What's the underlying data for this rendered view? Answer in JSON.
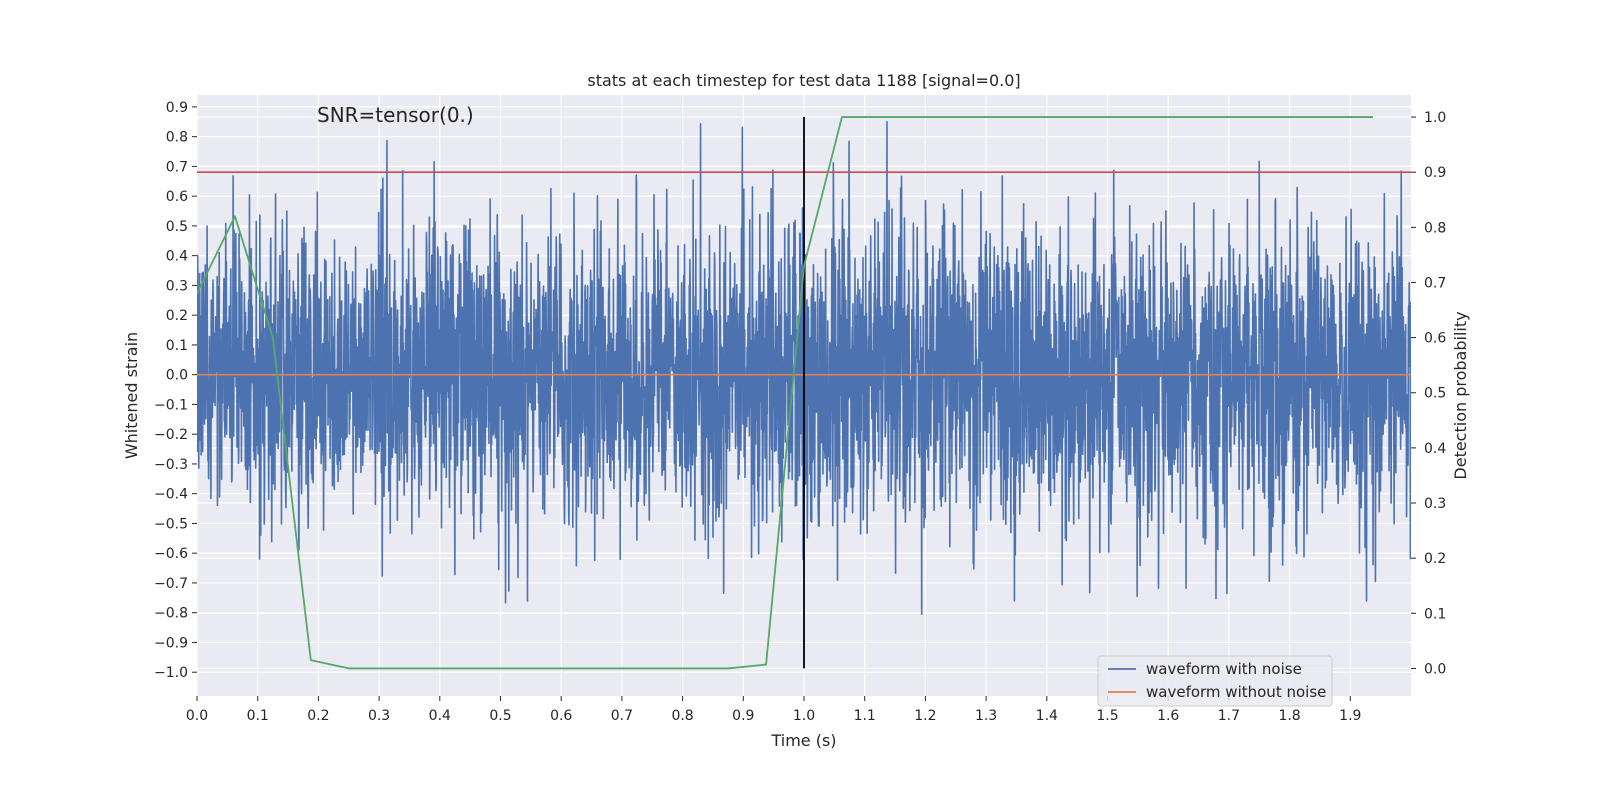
{
  "chart_data": {
    "type": "line",
    "title": "stats at each timestep for test data 1188 [signal=0.0]",
    "annotation": "SNR=tensor(0.)",
    "xlabel": "Time (s)",
    "ylabel_left": "Whitened strain",
    "ylabel_right": "Detection probability",
    "xlim": [
      0.0,
      2.0
    ],
    "ylim_left": [
      -1.08,
      0.94
    ],
    "ylim_right": [
      -0.05,
      1.04
    ],
    "x_ticks": [
      "0.0",
      "0.1",
      "0.2",
      "0.3",
      "0.4",
      "0.5",
      "0.6",
      "0.7",
      "0.8",
      "0.9",
      "1.0",
      "1.1",
      "1.2",
      "1.3",
      "1.4",
      "1.5",
      "1.6",
      "1.7",
      "1.8",
      "1.9"
    ],
    "y_ticks_left": [
      "0.9",
      "0.8",
      "0.7",
      "0.6",
      "0.5",
      "0.4",
      "0.3",
      "0.2",
      "0.1",
      "0.0",
      "−0.1",
      "−0.2",
      "−0.3",
      "−0.4",
      "−0.5",
      "−0.6",
      "−0.7",
      "−0.8",
      "−0.9",
      "−1.0"
    ],
    "y_ticks_right": [
      "1.0",
      "0.9",
      "0.8",
      "0.7",
      "0.6",
      "0.5",
      "0.4",
      "0.3",
      "0.2",
      "0.1",
      "0.0"
    ],
    "grid": true,
    "legend_position": "lower-right",
    "colors": {
      "background": "#eaeaf2",
      "grid": "#ffffff",
      "noisy": "#4c72b0",
      "clean": "#dd8452",
      "probability": "#55a868",
      "threshold": "#c44e52",
      "marker": "#000000"
    },
    "series": [
      {
        "name": "waveform with noise",
        "axis": "left",
        "description": "approximately Gaussian noise sampled at 2048 Hz over 2 s, typical amplitude about 0.25, range about -1.0 to 0.85"
      },
      {
        "name": "waveform without noise",
        "axis": "left",
        "x": [
          0.0,
          2.0
        ],
        "y": [
          0.0,
          0.0
        ]
      },
      {
        "axis": "right",
        "x": [
          0.0,
          0.0625,
          0.125,
          0.1875,
          0.25,
          0.875,
          0.9375,
          1.0,
          1.0625,
          1.125,
          1.9375
        ],
        "y": [
          0.68,
          0.82,
          0.6,
          0.015,
          0.0,
          0.0,
          0.007,
          0.73,
          1.0,
          1.0,
          1.0
        ]
      },
      {
        "axis": "right",
        "type": "hline",
        "y": 0.9
      },
      {
        "type": "vline",
        "x": 1.0,
        "yrange_right": [
          0.0,
          1.0
        ]
      }
    ]
  },
  "legend": {
    "items": [
      {
        "label": "waveform with noise",
        "color": "#4c72b0"
      },
      {
        "label": "waveform without noise",
        "color": "#dd8452"
      }
    ]
  }
}
